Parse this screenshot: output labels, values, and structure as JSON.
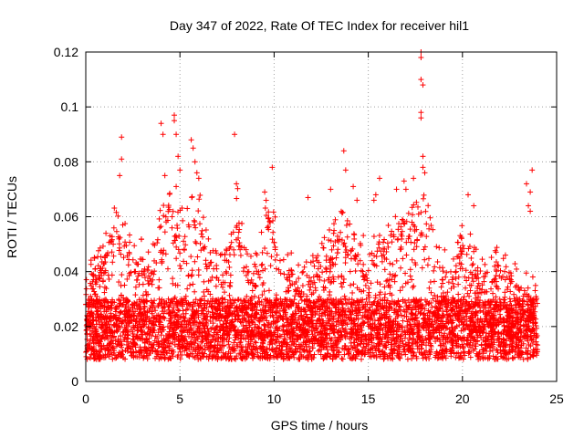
{
  "chart_data": {
    "type": "scatter",
    "title": "Day 347 of 2022, Rate Of TEC Index for receiver hil1",
    "xlabel": "GPS time / hours",
    "ylabel": "ROTI / TECUs",
    "xlim": [
      0,
      25
    ],
    "ylim": [
      0,
      0.12
    ],
    "xticks": [
      0,
      5,
      10,
      15,
      20,
      25
    ],
    "xtick_labels": [
      "0",
      "5",
      "10",
      "15",
      "20",
      "25"
    ],
    "yticks": [
      0,
      0.02,
      0.04,
      0.06,
      0.08,
      0.1,
      0.12
    ],
    "ytick_labels": [
      "0",
      "0.02",
      "0.04",
      "0.06",
      "0.08",
      "0.1",
      "0.12"
    ],
    "grid": true,
    "marker": "+",
    "color": "#ff0000",
    "data_x_range": [
      0,
      24
    ],
    "envelope_upper": [
      [
        0.0,
        0.042
      ],
      [
        0.5,
        0.046
      ],
      [
        1.0,
        0.05
      ],
      [
        1.5,
        0.062
      ],
      [
        2.0,
        0.058
      ],
      [
        2.5,
        0.048
      ],
      [
        3.0,
        0.05
      ],
      [
        3.5,
        0.046
      ],
      [
        4.0,
        0.062
      ],
      [
        4.5,
        0.07
      ],
      [
        5.0,
        0.06
      ],
      [
        5.5,
        0.064
      ],
      [
        6.0,
        0.068
      ],
      [
        6.5,
        0.05
      ],
      [
        7.0,
        0.045
      ],
      [
        7.5,
        0.046
      ],
      [
        8.0,
        0.07
      ],
      [
        8.5,
        0.048
      ],
      [
        9.0,
        0.044
      ],
      [
        9.5,
        0.068
      ],
      [
        10.0,
        0.06
      ],
      [
        10.5,
        0.045
      ],
      [
        11.0,
        0.046
      ],
      [
        11.5,
        0.04
      ],
      [
        12.0,
        0.044
      ],
      [
        12.5,
        0.05
      ],
      [
        13.0,
        0.055
      ],
      [
        13.5,
        0.06
      ],
      [
        14.0,
        0.058
      ],
      [
        14.5,
        0.052
      ],
      [
        15.0,
        0.05
      ],
      [
        15.5,
        0.056
      ],
      [
        16.0,
        0.064
      ],
      [
        16.5,
        0.058
      ],
      [
        17.0,
        0.066
      ],
      [
        17.5,
        0.062
      ],
      [
        18.0,
        0.074
      ],
      [
        18.5,
        0.052
      ],
      [
        19.0,
        0.046
      ],
      [
        19.5,
        0.044
      ],
      [
        20.0,
        0.058
      ],
      [
        20.5,
        0.05
      ],
      [
        21.0,
        0.044
      ],
      [
        21.5,
        0.046
      ],
      [
        22.0,
        0.05
      ],
      [
        22.5,
        0.046
      ],
      [
        23.0,
        0.04
      ],
      [
        23.5,
        0.038
      ],
      [
        24.0,
        0.036
      ]
    ],
    "outliers": [
      {
        "x": 1.9,
        "y": 0.089
      },
      {
        "x": 1.9,
        "y": 0.081
      },
      {
        "x": 1.8,
        "y": 0.075
      },
      {
        "x": 4.0,
        "y": 0.094
      },
      {
        "x": 4.1,
        "y": 0.09
      },
      {
        "x": 4.2,
        "y": 0.075
      },
      {
        "x": 4.7,
        "y": 0.097
      },
      {
        "x": 4.7,
        "y": 0.095
      },
      {
        "x": 4.8,
        "y": 0.09
      },
      {
        "x": 4.9,
        "y": 0.082
      },
      {
        "x": 5.0,
        "y": 0.077
      },
      {
        "x": 4.8,
        "y": 0.071
      },
      {
        "x": 5.6,
        "y": 0.088
      },
      {
        "x": 5.7,
        "y": 0.085
      },
      {
        "x": 5.8,
        "y": 0.08
      },
      {
        "x": 5.9,
        "y": 0.076
      },
      {
        "x": 6.0,
        "y": 0.074
      },
      {
        "x": 7.9,
        "y": 0.09
      },
      {
        "x": 8.0,
        "y": 0.072
      },
      {
        "x": 9.5,
        "y": 0.069
      },
      {
        "x": 9.9,
        "y": 0.078
      },
      {
        "x": 11.8,
        "y": 0.067
      },
      {
        "x": 13.0,
        "y": 0.07
      },
      {
        "x": 13.7,
        "y": 0.084
      },
      {
        "x": 13.8,
        "y": 0.077
      },
      {
        "x": 14.2,
        "y": 0.071
      },
      {
        "x": 14.4,
        "y": 0.066
      },
      {
        "x": 15.3,
        "y": 0.066
      },
      {
        "x": 15.4,
        "y": 0.068
      },
      {
        "x": 15.6,
        "y": 0.074
      },
      {
        "x": 16.5,
        "y": 0.07
      },
      {
        "x": 16.9,
        "y": 0.073
      },
      {
        "x": 17.0,
        "y": 0.07
      },
      {
        "x": 17.4,
        "y": 0.074
      },
      {
        "x": 17.8,
        "y": 0.12
      },
      {
        "x": 17.8,
        "y": 0.118
      },
      {
        "x": 17.8,
        "y": 0.11
      },
      {
        "x": 17.9,
        "y": 0.108
      },
      {
        "x": 17.8,
        "y": 0.098
      },
      {
        "x": 17.8,
        "y": 0.096
      },
      {
        "x": 17.9,
        "y": 0.082
      },
      {
        "x": 17.9,
        "y": 0.078
      },
      {
        "x": 18.0,
        "y": 0.076
      },
      {
        "x": 20.3,
        "y": 0.068
      },
      {
        "x": 20.6,
        "y": 0.064
      },
      {
        "x": 23.4,
        "y": 0.072
      },
      {
        "x": 23.7,
        "y": 0.077
      },
      {
        "x": 23.6,
        "y": 0.069
      },
      {
        "x": 23.5,
        "y": 0.064
      },
      {
        "x": 23.6,
        "y": 0.062
      }
    ]
  }
}
